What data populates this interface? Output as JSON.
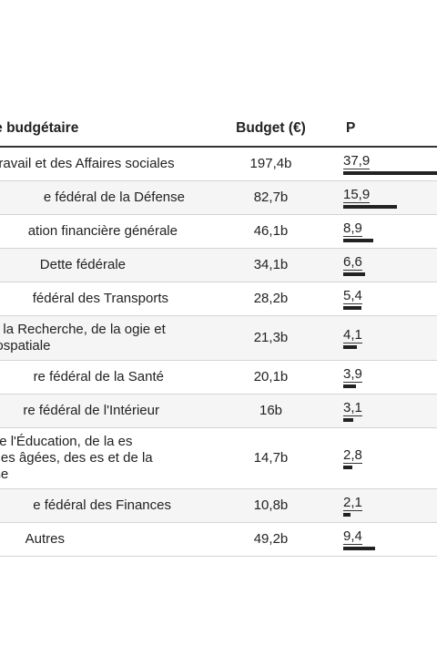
{
  "table": {
    "headers": {
      "poste": "re / Poste budgétaire",
      "budget": "Budget (€)",
      "pct": "P"
    },
    "rows": [
      {
        "poste": "ral du Travail et des Affaires sociales",
        "budget": "197,4b",
        "pct": "37,9",
        "share": 37.9
      },
      {
        "poste": "e fédéral de la Défense",
        "budget": "82,7b",
        "pct": "15,9",
        "share": 15.9
      },
      {
        "poste": "ation financière générale",
        "budget": "46,1b",
        "pct": "8,9",
        "share": 8.9
      },
      {
        "poste": "Dette fédérale",
        "budget": "34,1b",
        "pct": "6,6",
        "share": 6.6
      },
      {
        "poste": "fédéral des Transports",
        "budget": "28,2b",
        "pct": "5,4",
        "share": 5.4
      },
      {
        "poste": "déral de la Recherche, de la ogie et de l'Aérospatiale",
        "budget": "21,3b",
        "pct": "4,1",
        "share": 4.1
      },
      {
        "poste": "re fédéral de la Santé",
        "budget": "20,1b",
        "pct": "3,9",
        "share": 3.9
      },
      {
        "poste": "re fédéral de l'Intérieur",
        "budget": "16b",
        "pct": "3,1",
        "share": 3.1
      },
      {
        "poste": "édéral de l'Éducation, de la es Personnes âgées, des es et de la Jeunesse",
        "budget": "14,7b",
        "pct": "2,8",
        "share": 2.8
      },
      {
        "poste": "e fédéral des Finances",
        "budget": "10,8b",
        "pct": "2,1",
        "share": 2.1
      },
      {
        "poste": "Autres",
        "budget": "49,2b",
        "pct": "9,4",
        "share": 9.4
      }
    ]
  }
}
